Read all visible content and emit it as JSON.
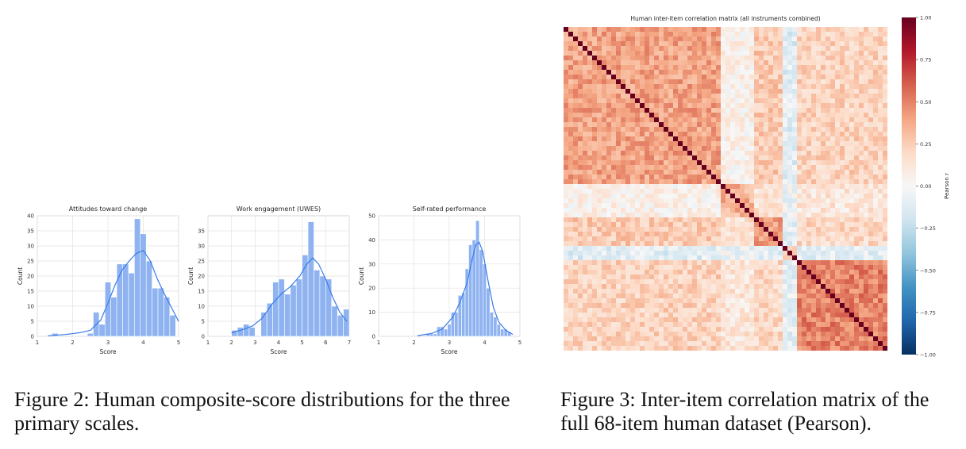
{
  "figure2": {
    "caption": "Figure 2: Human composite-score distributions for the three primary scales."
  },
  "figure3": {
    "caption": "Figure 3: Inter-item correlation matrix of the full 68-item human dataset (Pearson)."
  },
  "chart_data": [
    {
      "type": "bar",
      "title": "Attitudes toward change",
      "xlabel": "Score",
      "ylabel": "Count",
      "xlim": [
        1,
        5
      ],
      "ylim": [
        0,
        40
      ],
      "xticks": [
        "1",
        "2",
        "3",
        "4",
        "5"
      ],
      "yticks": [
        "0",
        "5",
        "10",
        "15",
        "20",
        "25",
        "30",
        "35",
        "40"
      ],
      "bin_width": 0.167,
      "bins": [
        1.5,
        1.667,
        1.833,
        2.0,
        2.167,
        2.333,
        2.5,
        2.667,
        2.833,
        3.0,
        3.167,
        3.333,
        3.5,
        3.667,
        3.833,
        4.0,
        4.167,
        4.333,
        4.5,
        4.667,
        4.833
      ],
      "values": [
        1,
        0,
        0,
        0,
        0,
        0,
        1,
        8,
        4,
        18,
        13,
        24,
        24,
        21,
        39,
        34,
        25,
        16,
        16,
        13,
        7
      ],
      "kde": [
        [
          1.3,
          0.2
        ],
        [
          1.8,
          0.6
        ],
        [
          2.2,
          1.2
        ],
        [
          2.5,
          2.0
        ],
        [
          2.8,
          5.5
        ],
        [
          3.0,
          11
        ],
        [
          3.2,
          17
        ],
        [
          3.4,
          22
        ],
        [
          3.6,
          25
        ],
        [
          3.8,
          27.5
        ],
        [
          4.0,
          28.5
        ],
        [
          4.2,
          25
        ],
        [
          4.4,
          19
        ],
        [
          4.6,
          14
        ],
        [
          4.8,
          9.5
        ],
        [
          5.0,
          5
        ]
      ]
    },
    {
      "type": "bar",
      "title": "Work engagement (UWES)",
      "xlabel": "Score",
      "ylabel": "Count",
      "xlim": [
        1,
        7
      ],
      "ylim": [
        0,
        40
      ],
      "xticks": [
        "1",
        "2",
        "3",
        "4",
        "5",
        "6",
        "7"
      ],
      "yticks": [
        "0",
        "5",
        "10",
        "15",
        "20",
        "25",
        "30",
        "35"
      ],
      "bin_width": 0.25,
      "bins": [
        2.125,
        2.375,
        2.625,
        2.875,
        3.125,
        3.375,
        3.625,
        3.875,
        4.125,
        4.375,
        4.625,
        4.875,
        5.125,
        5.375,
        5.625,
        5.875,
        6.125,
        6.375,
        6.625,
        6.875
      ],
      "values": [
        2,
        3,
        4,
        3,
        0,
        8,
        11,
        18,
        19,
        14,
        17,
        19,
        27,
        38,
        22,
        20,
        19,
        10,
        7,
        9
      ],
      "kde": [
        [
          2.0,
          1.2
        ],
        [
          2.5,
          2.3
        ],
        [
          2.9,
          3.5
        ],
        [
          3.3,
          6
        ],
        [
          3.7,
          10.5
        ],
        [
          4.1,
          14
        ],
        [
          4.5,
          16.5
        ],
        [
          4.9,
          20
        ],
        [
          5.2,
          24
        ],
        [
          5.45,
          26
        ],
        [
          5.7,
          24
        ],
        [
          6.0,
          19
        ],
        [
          6.3,
          13
        ],
        [
          6.6,
          8
        ],
        [
          6.9,
          5
        ]
      ]
    },
    {
      "type": "bar",
      "title": "Self-rated performance",
      "xlabel": "Score",
      "ylabel": "Count",
      "xlim": [
        1,
        5
      ],
      "ylim": [
        0,
        50
      ],
      "xticks": [
        "1",
        "2",
        "3",
        "4",
        "5"
      ],
      "yticks": [
        "0",
        "10",
        "20",
        "30",
        "40",
        "50"
      ],
      "bin_width": 0.1,
      "bins": [
        2.4,
        2.5,
        2.6,
        2.7,
        2.8,
        2.9,
        3.0,
        3.1,
        3.2,
        3.3,
        3.4,
        3.5,
        3.6,
        3.7,
        3.8,
        3.9,
        4.0,
        4.1,
        4.2,
        4.3,
        4.4,
        4.5,
        4.6,
        4.7
      ],
      "values": [
        1,
        1,
        1,
        4,
        4,
        3,
        5,
        10,
        10,
        17,
        18,
        28,
        38,
        40,
        48,
        36,
        30,
        20,
        10,
        8,
        5,
        3,
        3,
        2
      ],
      "kde": [
        [
          2.1,
          0.3
        ],
        [
          2.5,
          1.2
        ],
        [
          2.8,
          3
        ],
        [
          3.1,
          8
        ],
        [
          3.3,
          14
        ],
        [
          3.5,
          22
        ],
        [
          3.65,
          32
        ],
        [
          3.75,
          38
        ],
        [
          3.85,
          39
        ],
        [
          3.95,
          35
        ],
        [
          4.1,
          23
        ],
        [
          4.25,
          12
        ],
        [
          4.4,
          6
        ],
        [
          4.6,
          2.5
        ],
        [
          4.8,
          0.8
        ]
      ]
    },
    {
      "type": "heatmap",
      "title": "Human inter-item correlation matrix (all instruments combined)",
      "n_items": 68,
      "colorbar": {
        "label": "Pearson r",
        "range": [
          -1.0,
          1.0
        ],
        "ticks": [
          "1.00",
          "0.75",
          "0.50",
          "0.25",
          "0.00",
          "−0.25",
          "−0.50",
          "−0.75",
          "−1.00"
        ],
        "colors": [
          "#053061",
          "#2166ac",
          "#4393c3",
          "#92c5de",
          "#d1e5f0",
          "#f7f7f7",
          "#fddbc7",
          "#f4a582",
          "#d6604d",
          "#b2182b",
          "#67001f"
        ]
      },
      "blocks": [
        {
          "items": [
            0,
            33
          ],
          "within_r": 0.4
        },
        {
          "items": [
            33,
            40
          ],
          "within_r": 0.35
        },
        {
          "items": [
            40,
            46
          ],
          "within_r": 0.4
        },
        {
          "items": [
            46,
            49
          ],
          "within_r": 0.3
        },
        {
          "items": [
            49,
            68
          ],
          "within_r": 0.5
        }
      ],
      "between_r": [
        [
          0,
          0.05,
          0.25,
          -0.12,
          0.22
        ],
        [
          0.05,
          0,
          0.15,
          -0.05,
          0.12
        ],
        [
          0.25,
          0.15,
          0,
          -0.1,
          0.2
        ],
        [
          -0.12,
          -0.05,
          -0.1,
          0,
          -0.1
        ],
        [
          0.22,
          0.12,
          0.2,
          -0.1,
          0
        ]
      ],
      "diagonal_r": 1.0
    }
  ]
}
